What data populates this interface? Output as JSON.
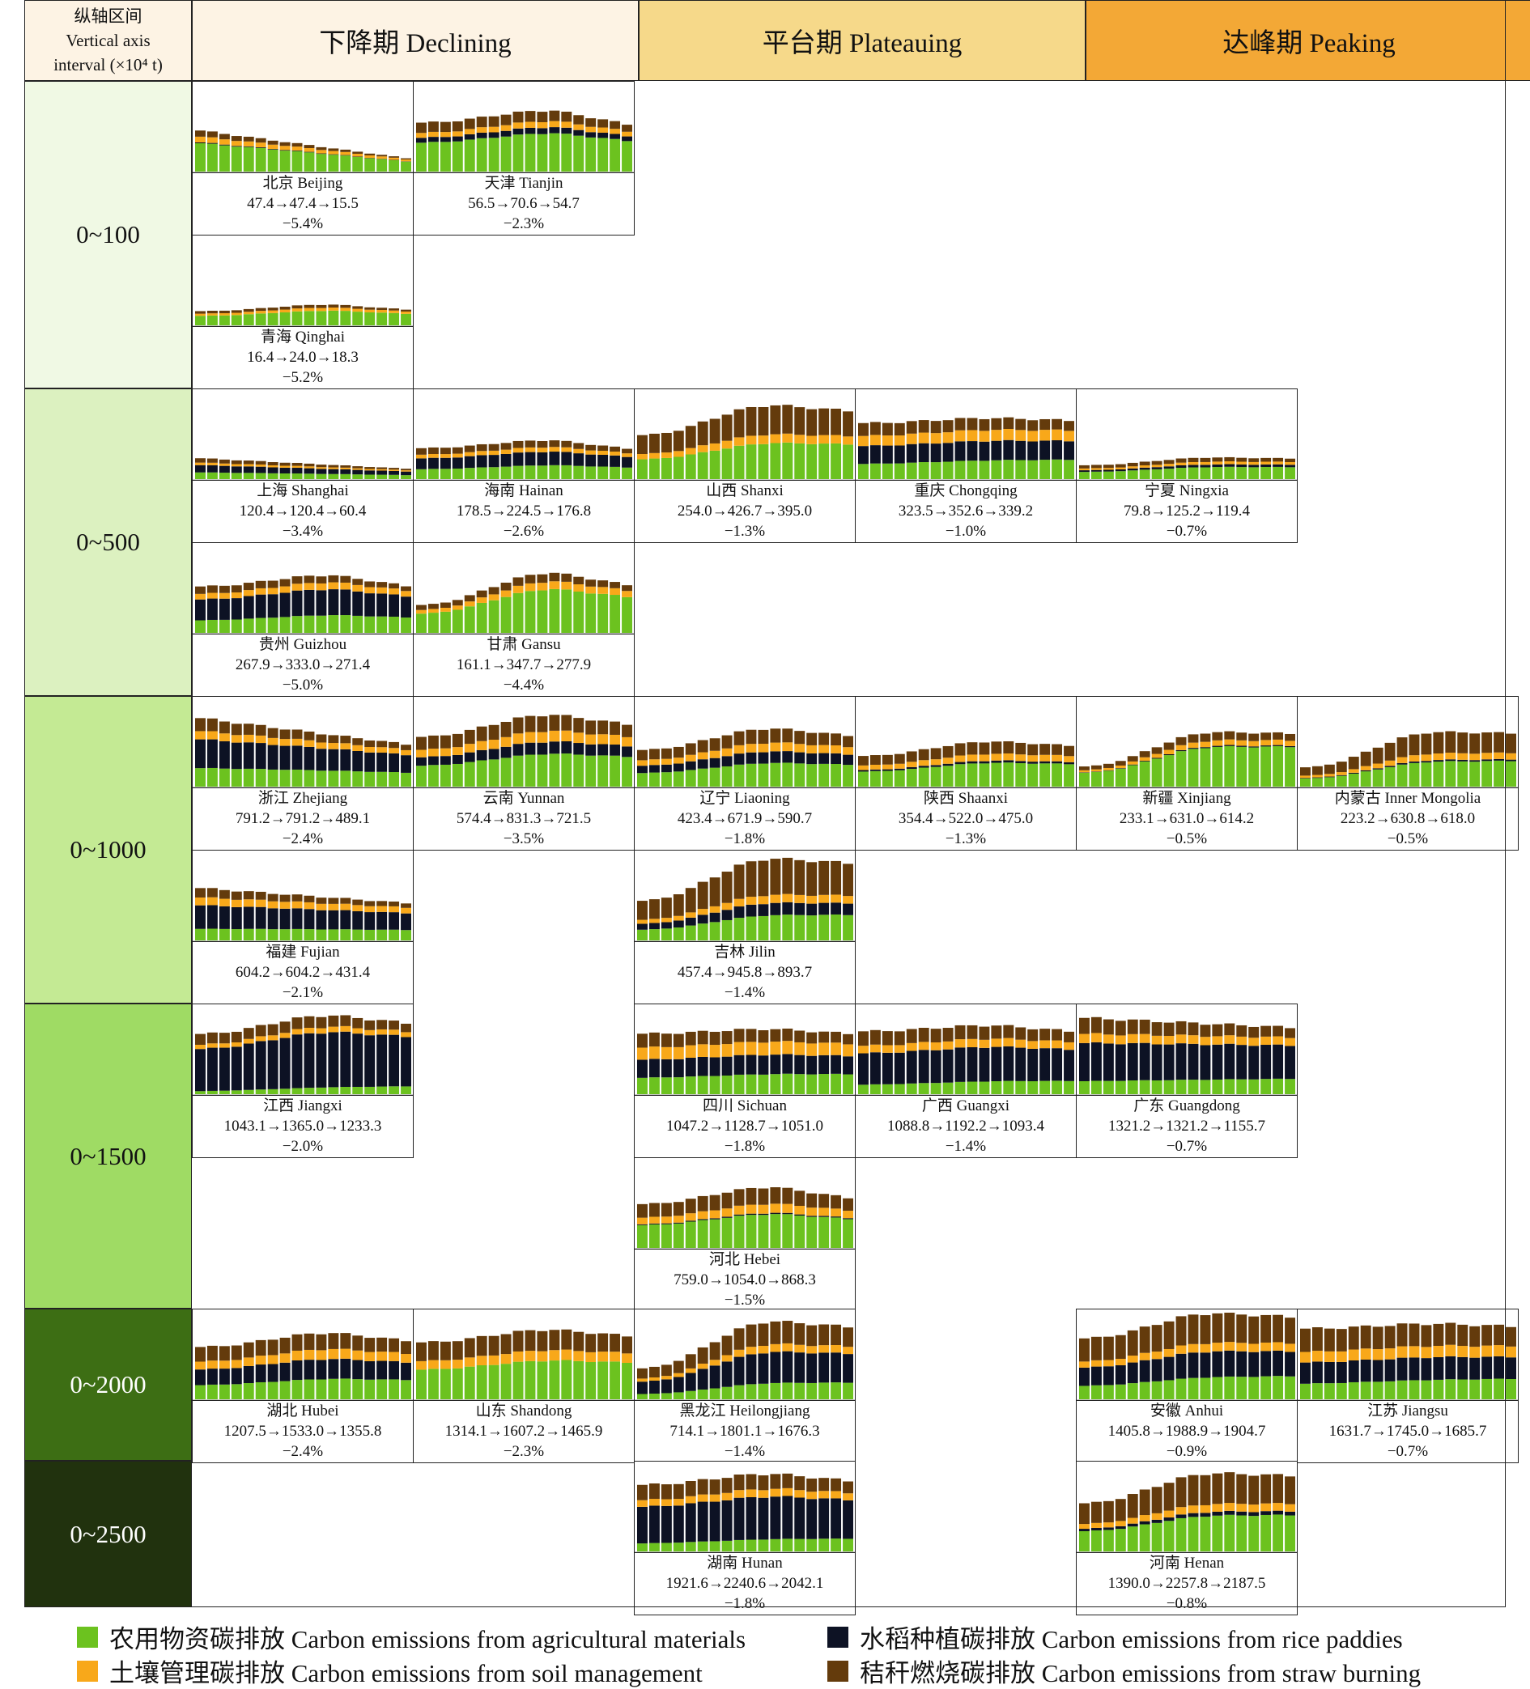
{
  "header": {
    "corner_lines": [
      "纵轴区间",
      "Vertical axis",
      "interval (×10⁴ t)"
    ],
    "columns": [
      "下降期 Declining",
      "平台期 Plateauing",
      "达峰期 Peaking"
    ]
  },
  "colors": {
    "declining_header": "#fdf3e4",
    "plateauing_header": "#f6d98a",
    "peaking_header": "#f3a836",
    "agri": "#6cc21f",
    "soil": "#f8a81a",
    "rice": "#0d1224",
    "straw": "#643b0c"
  },
  "chart_data": {
    "type": "bar",
    "stacked": true,
    "series_order": [
      "agri",
      "rice",
      "soil",
      "straw"
    ],
    "rows": [
      {
        "label": "0~100",
        "ymax": 100,
        "color": "#f0f9e4",
        "text_color": "#111111"
      },
      {
        "label": "0~500",
        "ymax": 500,
        "color": "#dcf1c0",
        "text_color": "#111111"
      },
      {
        "label": "0~1000",
        "ymax": 1000,
        "color": "#c4ea94",
        "text_color": "#111111"
      },
      {
        "label": "0~1500",
        "ymax": 1500,
        "color": "#9fdb64",
        "text_color": "#111111"
      },
      {
        "label": "0~2000",
        "ymax": 2000,
        "color": "#3d6e14",
        "text_color": "#ffffff"
      },
      {
        "label": "0~2500",
        "ymax": 2500,
        "color": "#21320e",
        "text_color": "#ffffff"
      }
    ],
    "provinces": [
      {
        "name": "北京 Beijing",
        "values": "47.4→47.4→15.5",
        "rate": "−5.4%",
        "row": 0,
        "sub": 0,
        "col": 0,
        "start": 47.4,
        "peak": 47.4,
        "end": 15.5,
        "mix": [
          0.72,
          0.02,
          0.14,
          0.12
        ]
      },
      {
        "name": "天津 Tianjin",
        "values": "56.5→70.6→54.7",
        "rate": "−2.3%",
        "row": 0,
        "sub": 0,
        "col": 1,
        "start": 56.5,
        "peak": 70.6,
        "end": 54.7,
        "mix": [
          0.62,
          0.1,
          0.1,
          0.18
        ]
      },
      {
        "name": "青海 Qinghai",
        "values": "16.4→24.0→18.3",
        "rate": "−5.2%",
        "row": 0,
        "sub": 1,
        "col": 0,
        "start": 16.4,
        "peak": 24.0,
        "end": 18.3,
        "mix": [
          0.7,
          0.0,
          0.15,
          0.15
        ]
      },
      {
        "name": "上海 Shanghai",
        "values": "120.4→120.4→60.4",
        "rate": "−3.4%",
        "row": 1,
        "sub": 0,
        "col": 0,
        "start": 120.4,
        "peak": 120.4,
        "end": 60.4,
        "mix": [
          0.35,
          0.35,
          0.12,
          0.18
        ]
      },
      {
        "name": "海南 Hainan",
        "values": "178.5→224.5→176.8",
        "rate": "−2.6%",
        "row": 1,
        "sub": 0,
        "col": 1,
        "start": 178.5,
        "peak": 224.5,
        "end": 176.8,
        "mix": [
          0.35,
          0.35,
          0.12,
          0.18
        ]
      },
      {
        "name": "山西 Shanxi",
        "values": "254.0→426.7→395.0",
        "rate": "−1.3%",
        "row": 1,
        "sub": 0,
        "col": 2,
        "start": 254.0,
        "peak": 426.7,
        "end": 395.0,
        "mix": [
          0.48,
          0.0,
          0.12,
          0.4
        ]
      },
      {
        "name": "重庆 Chongqing",
        "values": "323.5→352.6→339.2",
        "rate": "−1.0%",
        "row": 1,
        "sub": 0,
        "col": 3,
        "start": 323.5,
        "peak": 352.6,
        "end": 339.2,
        "mix": [
          0.3,
          0.32,
          0.18,
          0.2
        ]
      },
      {
        "name": "宁夏 Ningxia",
        "values": "79.8→125.2→119.4",
        "rate": "−0.7%",
        "row": 1,
        "sub": 0,
        "col": 4,
        "start": 79.8,
        "peak": 125.2,
        "end": 119.4,
        "mix": [
          0.55,
          0.12,
          0.13,
          0.2
        ]
      },
      {
        "name": "贵州 Guizhou",
        "values": "267.9→333.0→271.4",
        "rate": "−5.0%",
        "row": 1,
        "sub": 1,
        "col": 0,
        "start": 267.9,
        "peak": 333.0,
        "end": 271.4,
        "mix": [
          0.3,
          0.45,
          0.12,
          0.13
        ]
      },
      {
        "name": "甘肃 Gansu",
        "values": "161.1→347.7→277.9",
        "rate": "−4.4%",
        "row": 1,
        "sub": 1,
        "col": 1,
        "start": 161.1,
        "peak": 347.7,
        "end": 277.9,
        "mix": [
          0.72,
          0.0,
          0.13,
          0.15
        ]
      },
      {
        "name": "浙江 Zhejiang",
        "values": "791.2→791.2→489.1",
        "rate": "−2.4%",
        "row": 2,
        "sub": 0,
        "col": 0,
        "start": 791.2,
        "peak": 791.2,
        "end": 489.1,
        "mix": [
          0.3,
          0.42,
          0.12,
          0.16
        ]
      },
      {
        "name": "云南 Yunnan",
        "values": "574.4→831.3→721.5",
        "rate": "−3.5%",
        "row": 2,
        "sub": 0,
        "col": 1,
        "start": 574.4,
        "peak": 831.3,
        "end": 721.5,
        "mix": [
          0.45,
          0.17,
          0.15,
          0.23
        ]
      },
      {
        "name": "辽宁 Liaoning",
        "values": "423.4→671.9→590.7",
        "rate": "−1.8%",
        "row": 2,
        "sub": 0,
        "col": 2,
        "start": 423.4,
        "peak": 671.9,
        "end": 590.7,
        "mix": [
          0.4,
          0.2,
          0.15,
          0.25
        ]
      },
      {
        "name": "陕西 Shaanxi",
        "values": "354.4→522.0→475.0",
        "rate": "−1.3%",
        "row": 2,
        "sub": 0,
        "col": 3,
        "start": 354.4,
        "peak": 522.0,
        "end": 475.0,
        "mix": [
          0.52,
          0.05,
          0.15,
          0.28
        ]
      },
      {
        "name": "新疆 Xinjiang",
        "values": "233.1→631.0→614.2",
        "rate": "−0.5%",
        "row": 2,
        "sub": 0,
        "col": 4,
        "start": 233.1,
        "peak": 631.0,
        "end": 614.2,
        "mix": [
          0.72,
          0.02,
          0.1,
          0.16
        ]
      },
      {
        "name": "内蒙古 Inner Mongolia",
        "values": "223.2→630.8→618.0",
        "rate": "−0.5%",
        "row": 2,
        "sub": 0,
        "col": 5,
        "start": 223.2,
        "peak": 630.8,
        "end": 618.0,
        "mix": [
          0.45,
          0.03,
          0.12,
          0.4
        ]
      },
      {
        "name": "福建 Fujian",
        "values": "604.2→604.2→431.4",
        "rate": "−2.1%",
        "row": 2,
        "sub": 1,
        "col": 0,
        "start": 604.2,
        "peak": 604.2,
        "end": 431.4,
        "mix": [
          0.25,
          0.45,
          0.15,
          0.15
        ]
      },
      {
        "name": "吉林 Jilin",
        "values": "457.4→945.8→893.7",
        "rate": "−1.4%",
        "row": 2,
        "sub": 1,
        "col": 2,
        "start": 457.4,
        "peak": 945.8,
        "end": 893.7,
        "mix": [
          0.3,
          0.15,
          0.1,
          0.45
        ]
      },
      {
        "name": "江西 Jiangxi",
        "values": "1043.1→1365.0→1233.3",
        "rate": "−2.0%",
        "row": 3,
        "sub": 0,
        "col": 0,
        "start": 1043.1,
        "peak": 1365.0,
        "end": 1233.3,
        "mix": [
          0.08,
          0.7,
          0.07,
          0.15
        ]
      },
      {
        "name": "四川 Sichuan",
        "values": "1047.2→1128.7→1051.0",
        "rate": "−1.8%",
        "row": 3,
        "sub": 0,
        "col": 2,
        "start": 1047.2,
        "peak": 1128.7,
        "end": 1051.0,
        "mix": [
          0.3,
          0.3,
          0.2,
          0.2
        ]
      },
      {
        "name": "广西 Guangxi",
        "values": "1088.8→1192.2→1093.4",
        "rate": "−1.4%",
        "row": 3,
        "sub": 0,
        "col": 3,
        "start": 1088.8,
        "peak": 1192.2,
        "end": 1093.4,
        "mix": [
          0.18,
          0.5,
          0.12,
          0.2
        ]
      },
      {
        "name": "广东 Guangdong",
        "values": "1321.2→1321.2→1155.7",
        "rate": "−0.7%",
        "row": 3,
        "sub": 0,
        "col": 4,
        "start": 1321.2,
        "peak": 1321.2,
        "end": 1155.7,
        "mix": [
          0.2,
          0.5,
          0.12,
          0.18
        ]
      },
      {
        "name": "河北 Hebei",
        "values": "759.0→1054.0→868.3",
        "rate": "−1.5%",
        "row": 3,
        "sub": 1,
        "col": 2,
        "start": 759.0,
        "peak": 1054.0,
        "end": 868.3,
        "mix": [
          0.55,
          0.02,
          0.15,
          0.28
        ]
      },
      {
        "name": "湖北 Hubei",
        "values": "1207.5→1533.0→1355.8",
        "rate": "−2.4%",
        "row": 4,
        "sub": 0,
        "col": 0,
        "start": 1207.5,
        "peak": 1533.0,
        "end": 1355.8,
        "mix": [
          0.3,
          0.3,
          0.15,
          0.25
        ]
      },
      {
        "name": "山东 Shandong",
        "values": "1314.1→1607.2→1465.9",
        "rate": "−2.3%",
        "row": 4,
        "sub": 0,
        "col": 1,
        "start": 1314.1,
        "peak": 1607.2,
        "end": 1465.9,
        "mix": [
          0.55,
          0.0,
          0.15,
          0.3
        ]
      },
      {
        "name": "黑龙江 Heilongjiang",
        "values": "714.1→1801.1→1676.3",
        "rate": "−1.4%",
        "row": 4,
        "sub": 0,
        "col": 2,
        "start": 714.1,
        "peak": 1801.1,
        "end": 1676.3,
        "mix": [
          0.2,
          0.4,
          0.1,
          0.3
        ]
      },
      {
        "name": "安徽 Anhui",
        "values": "1405.8→1988.9→1904.7",
        "rate": "−0.9%",
        "row": 4,
        "sub": 0,
        "col": 4,
        "start": 1405.8,
        "peak": 1988.9,
        "end": 1904.7,
        "mix": [
          0.25,
          0.3,
          0.1,
          0.35
        ]
      },
      {
        "name": "江苏 Jiangsu",
        "values": "1631.7→1745.0→1685.7",
        "rate": "−0.7%",
        "row": 4,
        "sub": 0,
        "col": 5,
        "start": 1631.7,
        "peak": 1745.0,
        "end": 1685.7,
        "mix": [
          0.25,
          0.3,
          0.15,
          0.3
        ]
      },
      {
        "name": "湖南 Hunan",
        "values": "1921.6→2240.6→2042.1",
        "rate": "−1.8%",
        "row": 5,
        "sub": 0,
        "col": 2,
        "start": 1921.6,
        "peak": 2240.6,
        "end": 2042.1,
        "mix": [
          0.15,
          0.55,
          0.1,
          0.2
        ]
      },
      {
        "name": "河南 Henan",
        "values": "1390.0→2257.8→2187.5",
        "rate": "−0.8%",
        "row": 5,
        "sub": 0,
        "col": 4,
        "start": 1390.0,
        "peak": 2257.8,
        "end": 2187.5,
        "mix": [
          0.45,
          0.05,
          0.1,
          0.4
        ]
      }
    ],
    "legend": [
      {
        "key": "agri",
        "label": "农用物资碳排放 Carbon emissions from agricultural materials"
      },
      {
        "key": "rice",
        "label": "水稻种植碳排放 Carbon emissions from rice paddies"
      },
      {
        "key": "soil",
        "label": "土壤管理碳排放 Carbon emissions from soil management"
      },
      {
        "key": "straw",
        "label": "秸秆燃烧碳排放 Carbon emissions from straw burning"
      }
    ]
  }
}
